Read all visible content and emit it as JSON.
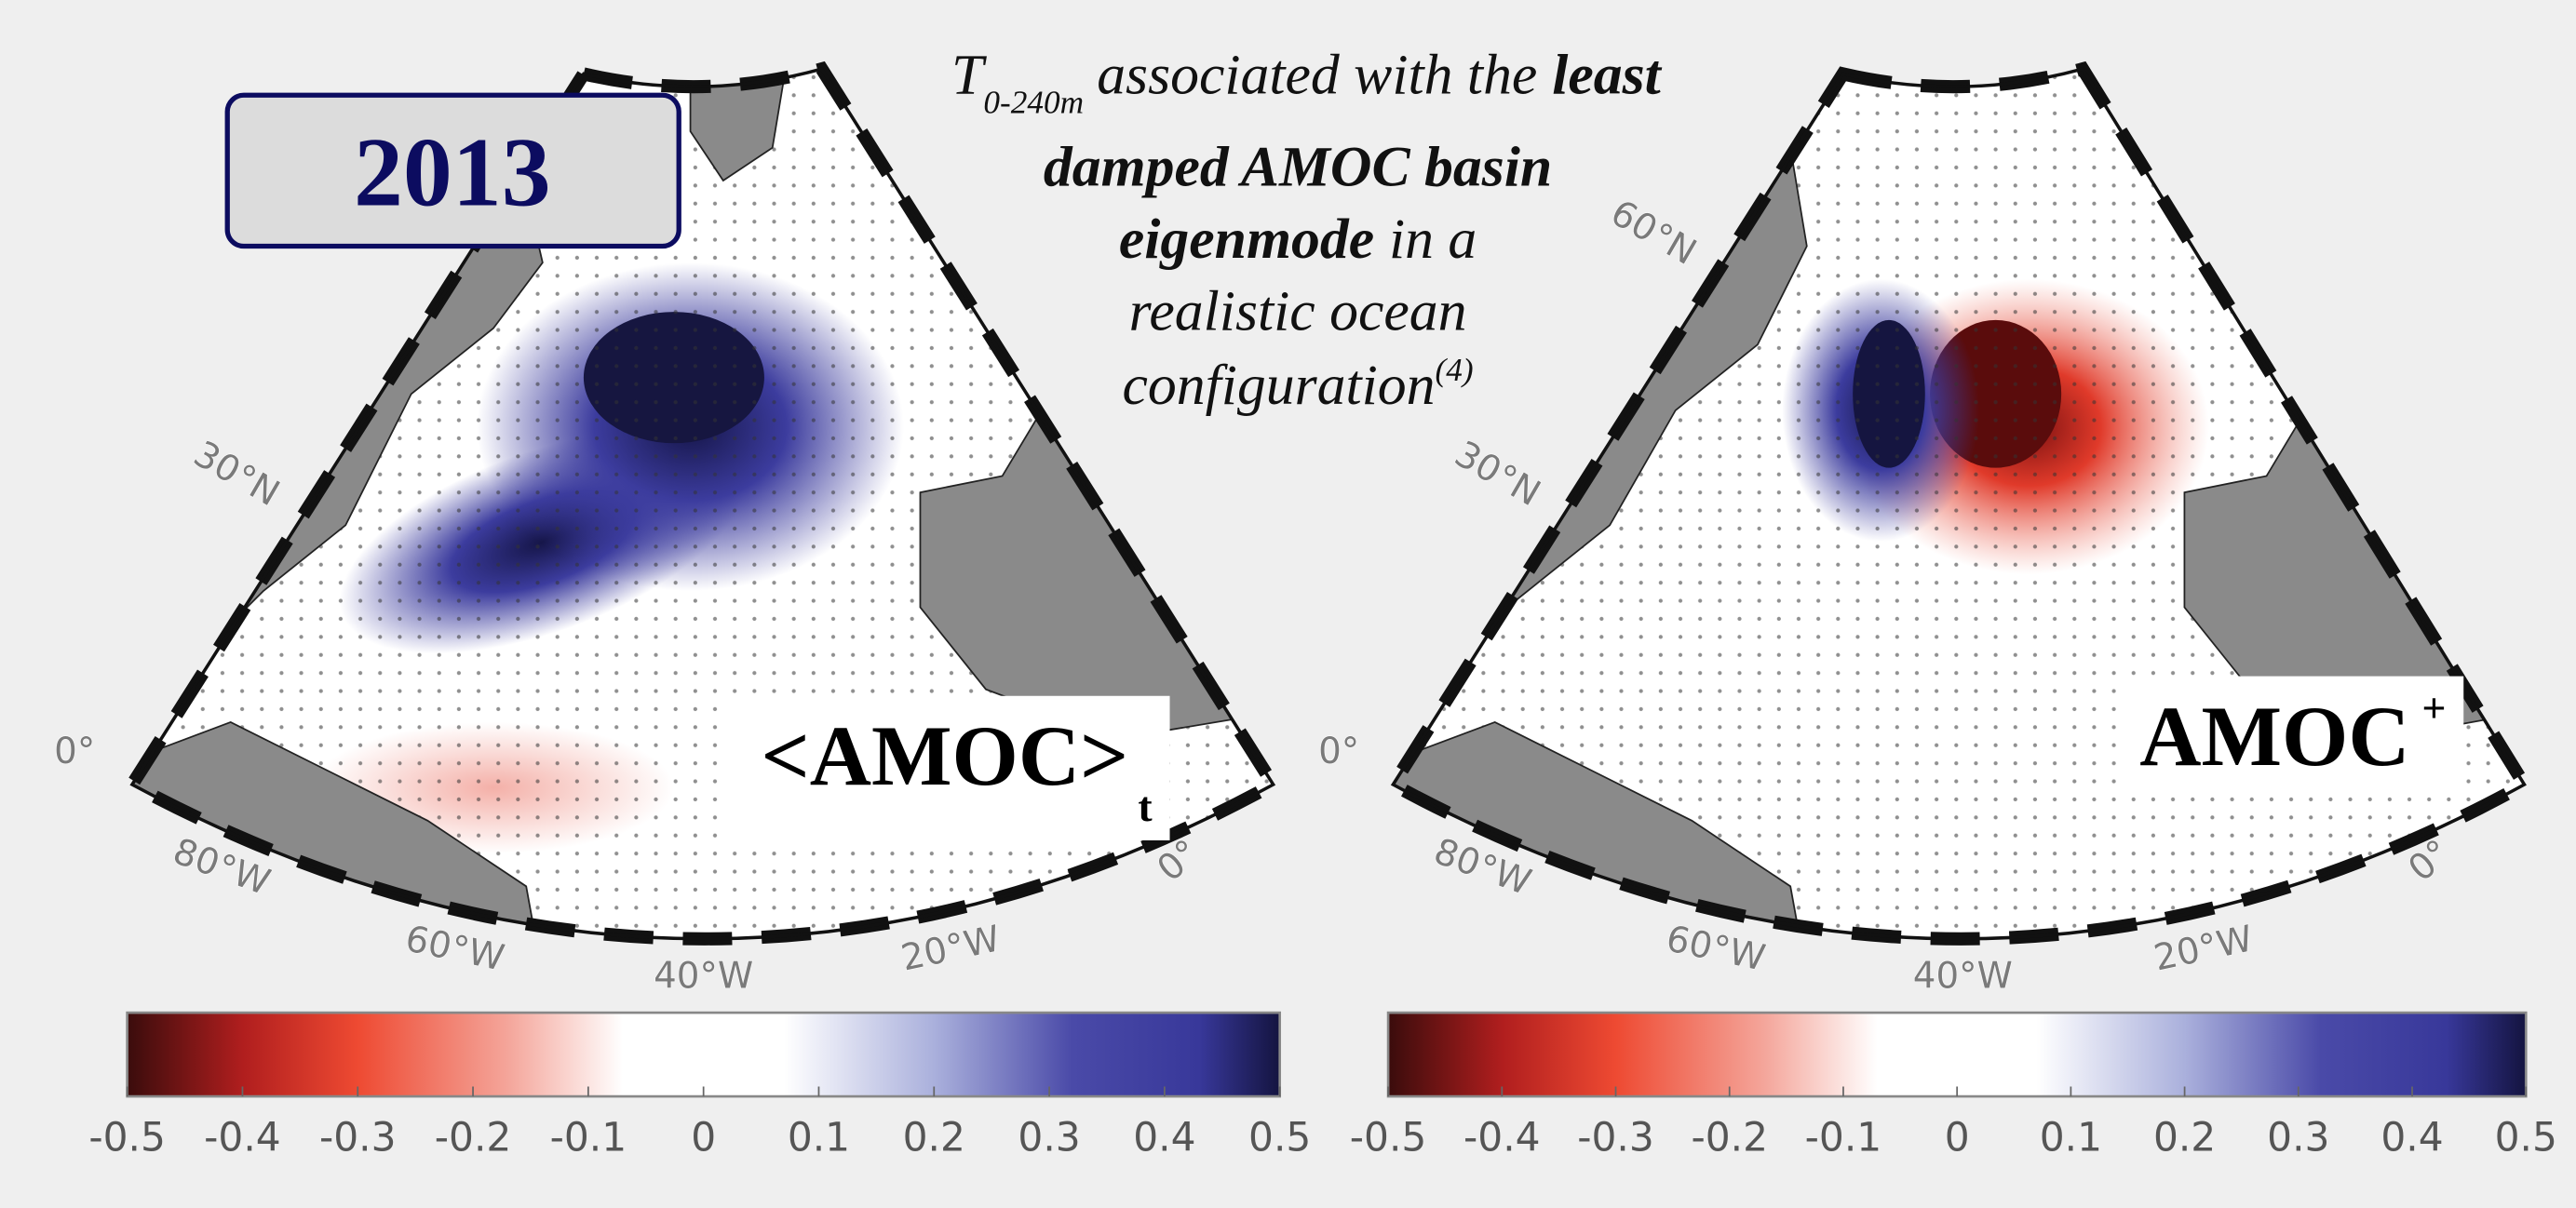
{
  "title": {
    "symbol": "T",
    "subscript": "0-240m",
    "line1": "associated with the",
    "line1_bold": "least",
    "line2_bold": "damped AMOC basin",
    "line3_bold": "eigenmode",
    "line3": "in a",
    "line4": "realistic ocean",
    "line5": "configuration",
    "footnote": "(4)"
  },
  "badge": "2013",
  "panels": [
    {
      "label": "<AMOC>",
      "label_subscript": "t",
      "geo_labels": [
        "30°N",
        "0°",
        "80°W",
        "60°W",
        "40°W",
        "20°W",
        "0°"
      ],
      "colorbar": {
        "range": [
          -0.5,
          0.5
        ],
        "ticks": [
          -0.5,
          -0.4,
          -0.3,
          -0.2,
          -0.1,
          0,
          0.1,
          0.2,
          0.3,
          0.4,
          0.5
        ]
      }
    },
    {
      "label": "AMOC",
      "label_superscript": "+",
      "geo_labels": [
        "60°N",
        "30°N",
        "0°",
        "80°W",
        "60°W",
        "40°W",
        "20°W",
        "0°"
      ],
      "colorbar": {
        "range": [
          -0.5,
          0.5
        ],
        "ticks": [
          -0.5,
          -0.4,
          -0.3,
          -0.2,
          -0.1,
          0,
          0.1,
          0.2,
          0.3,
          0.4,
          0.5
        ]
      }
    }
  ]
}
